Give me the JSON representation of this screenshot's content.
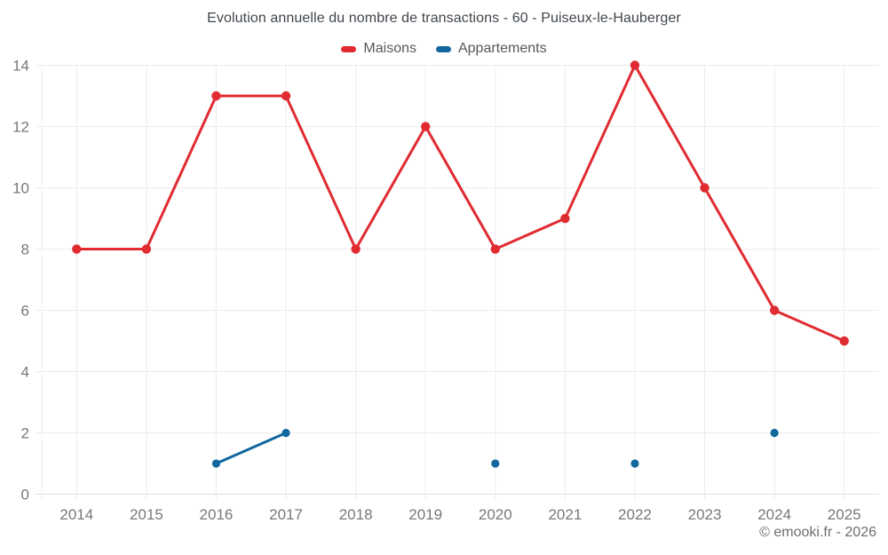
{
  "chart_data": {
    "type": "line",
    "title": "Evolution annuelle du nombre de transactions - 60 - Puiseux-le-Hauberger",
    "categories": [
      "2014",
      "2015",
      "2016",
      "2017",
      "2018",
      "2019",
      "2020",
      "2021",
      "2022",
      "2023",
      "2024",
      "2025"
    ],
    "series": [
      {
        "name": "Maisons",
        "color": "#e02b31",
        "values": [
          8,
          8,
          13,
          13,
          8,
          12,
          8,
          9,
          14,
          10,
          6,
          5
        ]
      },
      {
        "name": "Appartements",
        "color": "#11689e",
        "values": [
          null,
          null,
          1,
          2,
          null,
          null,
          1,
          null,
          1,
          null,
          2,
          null
        ]
      }
    ],
    "xlabel": "",
    "ylabel": "",
    "ylim": [
      0,
      14
    ],
    "y_ticks": [
      0,
      2,
      4,
      6,
      8,
      10,
      12,
      14
    ],
    "grid": true,
    "legend_position": "top"
  },
  "footer": {
    "credit": "© emooki.fr - 2026"
  },
  "colors": {
    "background": "#ffffff",
    "grid": "#ececec",
    "axis_line": "#dedede",
    "tick_text": "#75787c",
    "title_text": "#40464c",
    "legend_text": "#55595d",
    "footer_text": "#6b6f73"
  }
}
